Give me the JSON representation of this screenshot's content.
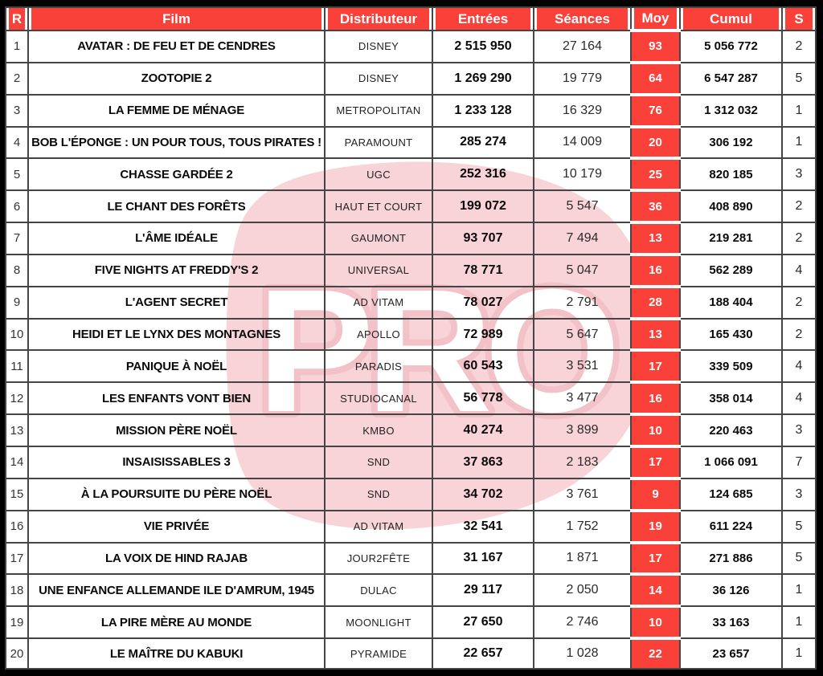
{
  "watermark": {
    "text": "PRO"
  },
  "colors": {
    "accent_red": "#f94139",
    "watermark_pink": "#f8d3d7",
    "watermark_pink_stroke": "#f3c2c8",
    "border_gray": "#454545",
    "frame_black": "#000000"
  },
  "table": {
    "columns": [
      {
        "key": "rank",
        "label": "R"
      },
      {
        "key": "film",
        "label": "Film"
      },
      {
        "key": "distributor",
        "label": "Distributeur"
      },
      {
        "key": "entries",
        "label": "Entrées"
      },
      {
        "key": "seances",
        "label": "Séances"
      },
      {
        "key": "moy",
        "label": "Moy"
      },
      {
        "key": "cumul",
        "label": "Cumul"
      },
      {
        "key": "weeks",
        "label": "S"
      }
    ],
    "rows": [
      {
        "rank": "1",
        "film": "AVATAR : DE FEU ET DE CENDRES",
        "distributor": "DISNEY",
        "entries": "2 515 950",
        "seances": "27 164",
        "moy": "93",
        "cumul": "5 056 772",
        "weeks": "2"
      },
      {
        "rank": "2",
        "film": "ZOOTOPIE 2",
        "distributor": "DISNEY",
        "entries": "1 269 290",
        "seances": "19 779",
        "moy": "64",
        "cumul": "6 547 287",
        "weeks": "5"
      },
      {
        "rank": "3",
        "film": "LA FEMME DE MÉNAGE",
        "distributor": "METROPOLITAN",
        "entries": "1 233 128",
        "seances": "16 329",
        "moy": "76",
        "cumul": "1 312 032",
        "weeks": "1"
      },
      {
        "rank": "4",
        "film": "BOB L'ÉPONGE : UN POUR TOUS, TOUS PIRATES !",
        "distributor": "PARAMOUNT",
        "entries": "285 274",
        "seances": "14 009",
        "moy": "20",
        "cumul": "306 192",
        "weeks": "1"
      },
      {
        "rank": "5",
        "film": "CHASSE GARDÉE 2",
        "distributor": "UGC",
        "entries": "252 316",
        "seances": "10 179",
        "moy": "25",
        "cumul": "820 185",
        "weeks": "3"
      },
      {
        "rank": "6",
        "film": "LE CHANT DES FORÊTS",
        "distributor": "HAUT ET COURT",
        "entries": "199 072",
        "seances": "5 547",
        "moy": "36",
        "cumul": "408 890",
        "weeks": "2"
      },
      {
        "rank": "7",
        "film": "L'ÂME IDÉALE",
        "distributor": "GAUMONT",
        "entries": "93 707",
        "seances": "7 494",
        "moy": "13",
        "cumul": "219 281",
        "weeks": "2"
      },
      {
        "rank": "8",
        "film": "FIVE NIGHTS AT FREDDY'S 2",
        "distributor": "UNIVERSAL",
        "entries": "78 771",
        "seances": "5 047",
        "moy": "16",
        "cumul": "562 289",
        "weeks": "4"
      },
      {
        "rank": "9",
        "film": "L'AGENT SECRET",
        "distributor": "AD VITAM",
        "entries": "78 027",
        "seances": "2 791",
        "moy": "28",
        "cumul": "188 404",
        "weeks": "2"
      },
      {
        "rank": "10",
        "film": "HEIDI ET LE LYNX DES MONTAGNES",
        "distributor": "APOLLO",
        "entries": "72 989",
        "seances": "5 647",
        "moy": "13",
        "cumul": "165 430",
        "weeks": "2"
      },
      {
        "rank": "11",
        "film": "PANIQUE À NOËL",
        "distributor": "PARADIS",
        "entries": "60 543",
        "seances": "3 531",
        "moy": "17",
        "cumul": "339 509",
        "weeks": "4"
      },
      {
        "rank": "12",
        "film": "LES ENFANTS VONT BIEN",
        "distributor": "STUDIOCANAL",
        "entries": "56 778",
        "seances": "3 477",
        "moy": "16",
        "cumul": "358 014",
        "weeks": "4"
      },
      {
        "rank": "13",
        "film": "MISSION PÈRE NOËL",
        "distributor": "KMBO",
        "entries": "40 274",
        "seances": "3 899",
        "moy": "10",
        "cumul": "220 463",
        "weeks": "3"
      },
      {
        "rank": "14",
        "film": "INSAISISSABLES 3",
        "distributor": "SND",
        "entries": "37 863",
        "seances": "2 183",
        "moy": "17",
        "cumul": "1 066 091",
        "weeks": "7"
      },
      {
        "rank": "15",
        "film": "À LA POURSUITE DU PÈRE NOËL",
        "distributor": "SND",
        "entries": "34 702",
        "seances": "3 761",
        "moy": "9",
        "cumul": "124 685",
        "weeks": "3"
      },
      {
        "rank": "16",
        "film": "VIE PRIVÉE",
        "distributor": "AD VITAM",
        "entries": "32 541",
        "seances": "1 752",
        "moy": "19",
        "cumul": "611 224",
        "weeks": "5"
      },
      {
        "rank": "17",
        "film": "LA VOIX DE HIND RAJAB",
        "distributor": "JOUR2FÊTE",
        "entries": "31 167",
        "seances": "1 871",
        "moy": "17",
        "cumul": "271 886",
        "weeks": "5"
      },
      {
        "rank": "18",
        "film": "UNE ENFANCE ALLEMANDE ILE D'AMRUM, 1945",
        "distributor": "DULAC",
        "entries": "29 117",
        "seances": "2 050",
        "moy": "14",
        "cumul": "36 126",
        "weeks": "1"
      },
      {
        "rank": "19",
        "film": "LA PIRE MÈRE AU MONDE",
        "distributor": "MOONLIGHT",
        "entries": "27 650",
        "seances": "2 746",
        "moy": "10",
        "cumul": "33 163",
        "weeks": "1"
      },
      {
        "rank": "20",
        "film": "LE MAÎTRE DU KABUKI",
        "distributor": "PYRAMIDE",
        "entries": "22 657",
        "seances": "1 028",
        "moy": "22",
        "cumul": "23 657",
        "weeks": "1"
      }
    ]
  }
}
